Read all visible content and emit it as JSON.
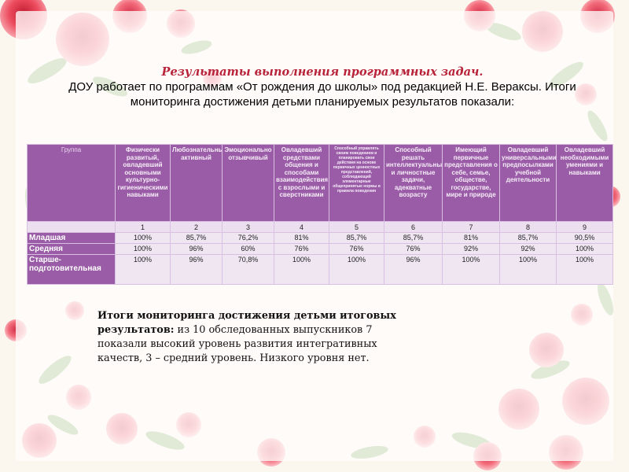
{
  "title": {
    "heading": "Результаты выполнения программных задач.",
    "body": "ДОУ работает по программам «От рождения до школы» под редакцией Н.Е. Вераксы. Итоги мониторинга достижения детьми планируемых результатов показали:"
  },
  "table": {
    "group_header": "Группа",
    "columns": [
      "Физически развитый, овладевший основными культурно-гигиеническими навыками",
      "Любознательный активный",
      "Эмоционально отзывчивый",
      "Овладевший средствами общения и способами взаимодействия с взрослыми и сверстниками",
      "Способный управлять своим поведением и планировать свои действия на основе первичных ценностных представлений, соблюдающий элементарные общепринятые нормы и правила поведения",
      "Способный решать интеллектуальные и личностные задачи, адекватные возрасту",
      "Имеющий первичные представления о себе, семье, обществе, государстве, мире и природе",
      "Овладевший универсальными предпосылками учебной деятельности",
      "Овладевший необходимыми умениями и навыками"
    ],
    "numbers": [
      "1",
      "2",
      "3",
      "4",
      "5",
      "6",
      "7",
      "8",
      "9"
    ],
    "rows": [
      {
        "label": "Младшая",
        "values": [
          "100%",
          "85,7%",
          "76,2%",
          "81%",
          "85,7%",
          "85,7%",
          "81%",
          "85,7%",
          "90,5%"
        ]
      },
      {
        "label": "Средняя",
        "values": [
          "100%",
          "96%",
          "60%",
          "76%",
          "76%",
          "76%",
          "92%",
          "92%",
          "100%"
        ]
      },
      {
        "label": "Старше-подготовительная",
        "values": [
          "100%",
          "96%",
          "70,8%",
          "100%",
          "100%",
          "96%",
          "100%",
          "100%",
          "100%"
        ]
      }
    ]
  },
  "results": {
    "bold": "Итоги мониторинга достижения детьми итоговых результатов:",
    "text": " из 10 обследованных выпускников 7 показали высокий уровень развития интегративных качеств, 3 – средний уровень. Низкого уровня нет."
  },
  "colors": {
    "header_purple": "#9a5ca7",
    "cell_lavender": "#efe6f2",
    "heading_red": "#b8233a",
    "rose": "#e8435a",
    "leaf": "#5c9a3c"
  }
}
